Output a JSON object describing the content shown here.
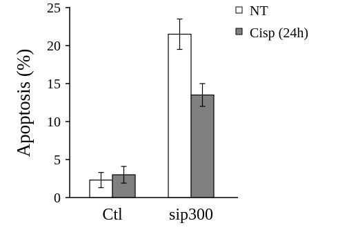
{
  "chart_data": {
    "type": "bar",
    "title": "",
    "xlabel": "",
    "ylabel": "Apoptosis (%)",
    "ylim": [
      0,
      25
    ],
    "yticks": [
      0,
      5,
      10,
      15,
      20,
      25
    ],
    "categories": [
      "Ctl",
      "sip300"
    ],
    "series": [
      {
        "name": "NT",
        "values": [
          2.3,
          21.5
        ],
        "errors": [
          1.0,
          2.0
        ],
        "color": "#ffffff"
      },
      {
        "name": "Cisp (24h)",
        "values": [
          3.0,
          13.5
        ],
        "errors": [
          1.1,
          1.5
        ],
        "color": "#808080"
      }
    ],
    "legend_position": "top-right",
    "grid": false
  }
}
